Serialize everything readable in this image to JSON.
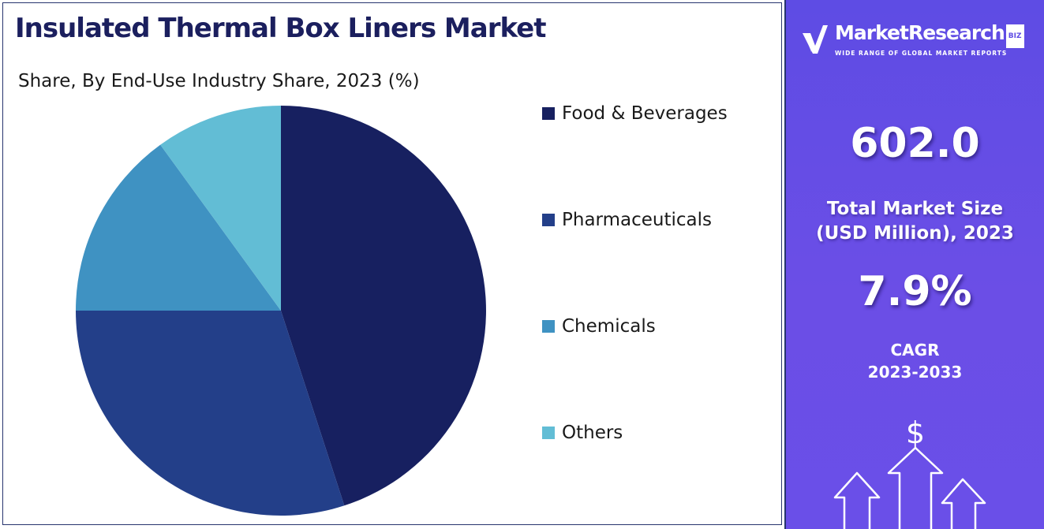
{
  "title": "Insulated Thermal Box Liners Market",
  "subtitle": "Share, By End-Use Industry Share, 2023 (%)",
  "colors": {
    "food_beverages": "#172060",
    "pharmaceuticals": "#233f89",
    "chemicals": "#3f92c2",
    "others": "#62bdd5",
    "sidebar": "#6a4fe8",
    "title": "#1b1f5e"
  },
  "chart_data": {
    "type": "pie",
    "title": "Insulated Thermal Box Liners Market",
    "subtitle": "Share, By End-Use Industry Share, 2023 (%)",
    "start_angle_deg": 0,
    "direction": "clockwise",
    "legend_position": "right",
    "slices": [
      {
        "label": "Food & Beverages",
        "value": 45,
        "color": "#172060"
      },
      {
        "label": "Pharmaceuticals",
        "value": 30,
        "color": "#233f89"
      },
      {
        "label": "Chemicals",
        "value": 15,
        "color": "#3f92c2"
      },
      {
        "label": "Others",
        "value": 10,
        "color": "#62bdd5"
      }
    ]
  },
  "brand": {
    "name": "MarketResearch",
    "badge": "BIZ",
    "tagline": "WIDE RANGE OF GLOBAL MARKET REPORTS",
    "logo_icon": "check-v-logo-icon"
  },
  "stats": {
    "market_size_value": "602.0",
    "market_size_label_line1": "Total Market Size",
    "market_size_label_line2": "(USD Million), 2023",
    "cagr_value": "7.9%",
    "cagr_label_line1": "CAGR",
    "cagr_label_line2": "2023-2033"
  },
  "graphic": {
    "symbol": "$",
    "icon": "growth-arrows-icon"
  }
}
